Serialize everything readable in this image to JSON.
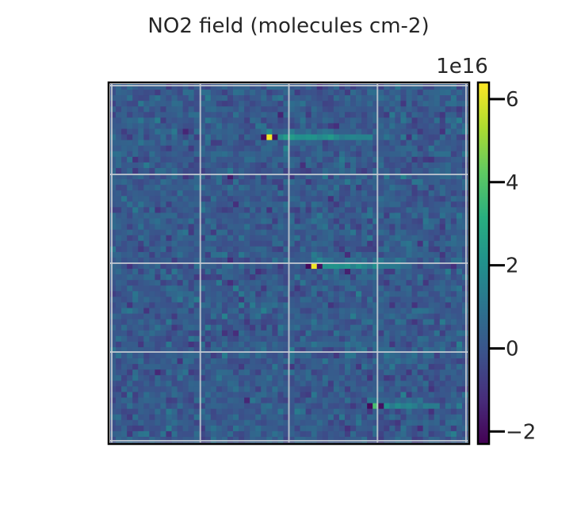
{
  "chart_data": {
    "type": "heatmap",
    "title": "NO2 field (molecules cm-2)",
    "xlabel": "",
    "ylabel": "",
    "grid": true,
    "grid_color": "#c8cdd4",
    "colormap": "viridis",
    "colorbar": {
      "min": -2.3,
      "max": 6.4,
      "offset_label": "1e16",
      "ticks": [
        -2,
        0,
        2,
        4,
        6
      ],
      "tick_labels": [
        "−2",
        "0",
        "2",
        "4",
        "6"
      ]
    },
    "grid_size": [
      64,
      64
    ],
    "background_level": 0.15,
    "plumes": [
      {
        "row": 9,
        "col_start": 27,
        "col_end": 46,
        "peak": 6.3,
        "tail": 2.8
      },
      {
        "row": 32,
        "col_start": 35,
        "col_end": 52,
        "peak": 6.2,
        "tail": 2.5
      },
      {
        "row": 57,
        "col_start": 46,
        "col_end": 58,
        "peak": 3.8,
        "tail": 2.2
      }
    ]
  }
}
